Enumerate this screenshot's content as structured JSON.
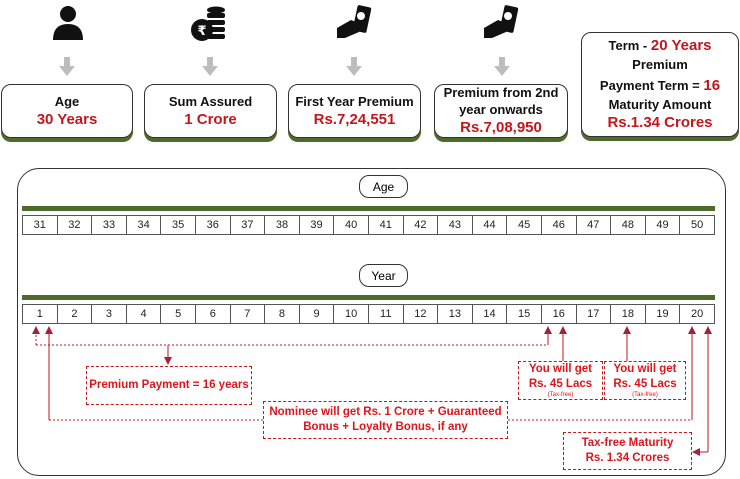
{
  "cards": [
    {
      "label": "Age",
      "value": "30 Years",
      "icon": "person-icon"
    },
    {
      "label": "Sum Assured",
      "value": "1 Crore",
      "icon": "rupee-coins-icon"
    },
    {
      "label": "First Year Premium",
      "value": "Rs.7,24,551",
      "icon": "hand-cash-icon"
    },
    {
      "label": "Premium from 2nd year onwards",
      "value": "Rs.7,08,950",
      "icon": "hand-cash-icon"
    }
  ],
  "summary": {
    "term_label": "Term  -",
    "term_value": "20 Years",
    "ppt_label1": "Premium",
    "ppt_label2": "Payment Term =",
    "ppt_value": "16",
    "maturity_label": "Maturity Amount",
    "maturity_value": "Rs.1.34 Crores"
  },
  "timeline": {
    "age_label": "Age",
    "ages": [
      "31",
      "32",
      "33",
      "34",
      "35",
      "36",
      "37",
      "38",
      "39",
      "40",
      "41",
      "42",
      "43",
      "44",
      "45",
      "46",
      "47",
      "48",
      "49",
      "50"
    ],
    "year_label": "Year",
    "years": [
      "1",
      "2",
      "3",
      "4",
      "5",
      "6",
      "7",
      "8",
      "9",
      "10",
      "11",
      "12",
      "13",
      "14",
      "15",
      "16",
      "17",
      "18",
      "19",
      "20"
    ]
  },
  "notes": {
    "premium_payment": "Premium Payment = 16 years",
    "payout1": {
      "line1": "You will get",
      "line2": "Rs. 45 Lacs",
      "line3": "(Tax-free)"
    },
    "payout2": {
      "line1": "You will get",
      "line2": "Rs. 45 Lacs",
      "line3": "(Tax-free)"
    },
    "nominee": {
      "line1": "Nominee will get Rs. 1 Crore + Guaranteed",
      "line2": "Bonus + Loyalty Bonus, if any"
    },
    "maturity": {
      "line1": "Tax-free Maturity",
      "line2": "Rs. 1.34 Crores"
    }
  },
  "colors": {
    "accent_red": "#c4161c",
    "green": "#4e6b2e",
    "line": "#a0233a",
    "arrow_grey": "#bdbdbd"
  }
}
